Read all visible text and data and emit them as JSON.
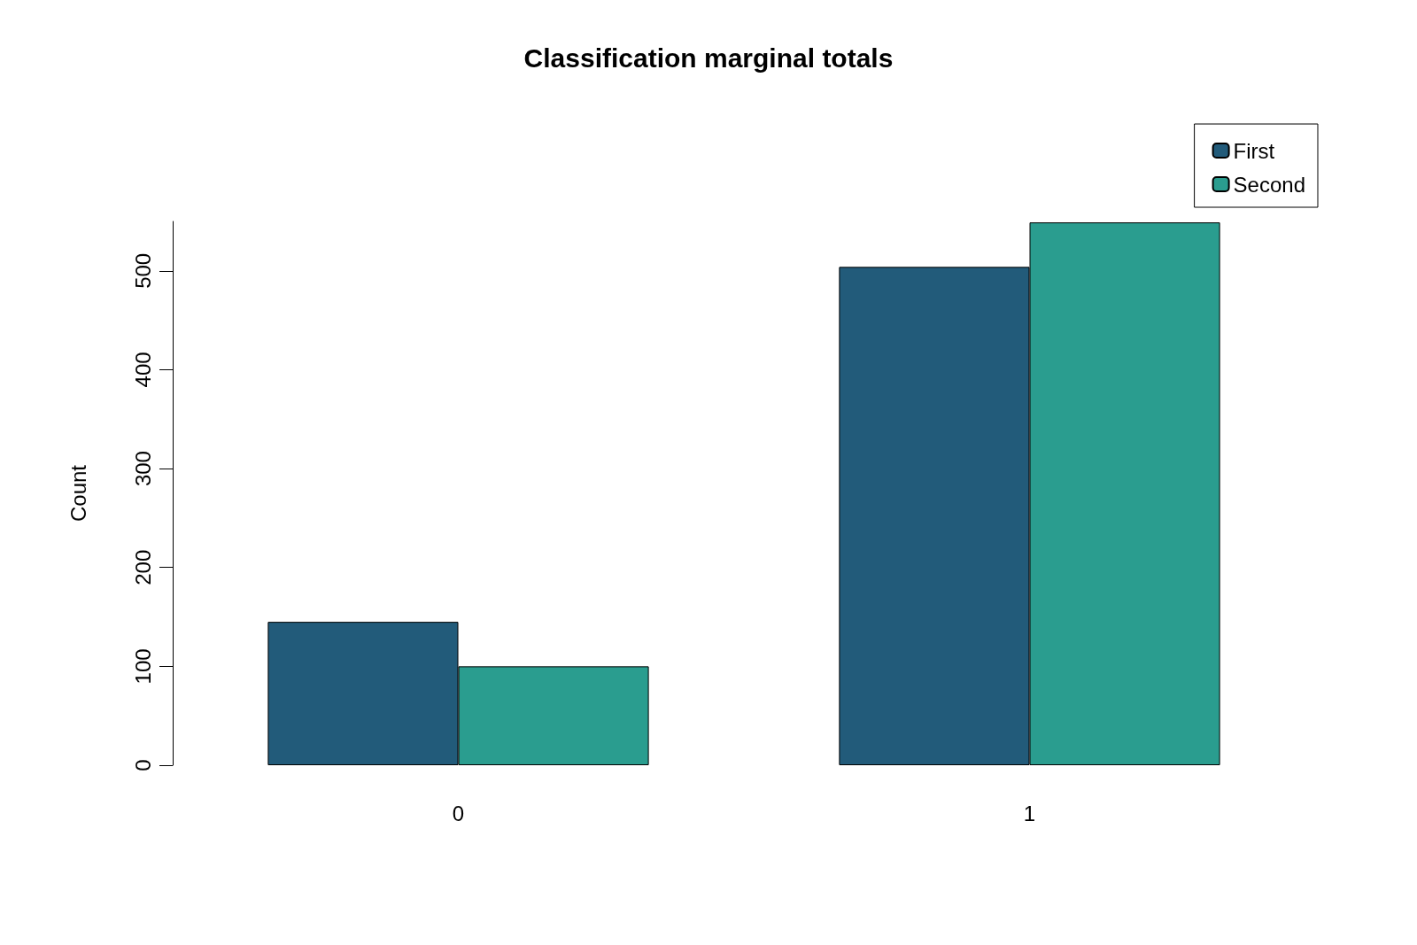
{
  "chart_data": {
    "type": "bar",
    "title": "Classification marginal totals",
    "ylabel": "Count",
    "categories": [
      "0",
      "1"
    ],
    "series": [
      {
        "name": "First",
        "color": "#225b7a",
        "values": [
          145,
          504
        ]
      },
      {
        "name": "Second",
        "color": "#2a9d8f",
        "values": [
          100,
          549
        ]
      }
    ],
    "ylim": [
      0,
      550
    ],
    "yticks": [
      0,
      100,
      200,
      300,
      400,
      500
    ],
    "grid": false,
    "legend": "top right"
  }
}
